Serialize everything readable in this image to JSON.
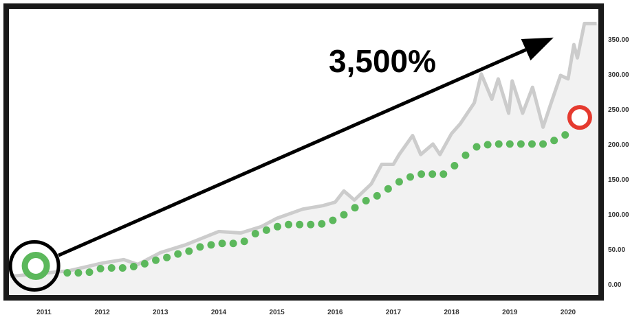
{
  "chart_data": {
    "type": "line",
    "title": "",
    "xlabel": "",
    "ylabel": "",
    "x_ticks": [
      "2011",
      "2012",
      "2013",
      "2014",
      "2015",
      "2016",
      "2017",
      "2018",
      "2019",
      "2020"
    ],
    "y_ticks": [
      "0.00",
      "50.00",
      "100.00",
      "150.00",
      "200.00",
      "250.00",
      "300.00",
      "350.00"
    ],
    "xlim": [
      2010.41,
      2020.52
    ],
    "ylim": [
      -15.7,
      390
    ],
    "y_axis_position": "right",
    "grid": false,
    "colors": {
      "price_line": "#cccccc",
      "area_fill": "#f2f2f2",
      "dots": "#5cb85c",
      "start_marker": "#5cb85c",
      "end_marker": "#e53a2f",
      "arrow": "#000000",
      "frame": "#1a1a1a"
    },
    "series": [
      {
        "style": "solid-gray-area",
        "x": [
          2010.42,
          2011.43,
          2012.0,
          2012.37,
          2012.61,
          2013.0,
          2013.43,
          2014.0,
          2014.38,
          2014.73,
          2015.0,
          2015.44,
          2015.79,
          2016.0,
          2016.15,
          2016.33,
          2016.62,
          2016.8,
          2017.0,
          2017.1,
          2017.33,
          2017.47,
          2017.68,
          2017.8,
          2018.0,
          2018.15,
          2018.39,
          2018.51,
          2018.69,
          2018.8,
          2018.98,
          2019.04,
          2019.22,
          2019.39,
          2019.57,
          2019.69,
          2019.87,
          2020.0,
          2020.1,
          2020.16,
          2020.28,
          2020.49
        ],
        "values": [
          11,
          19,
          30,
          35,
          28,
          45,
          56,
          75,
          73,
          82,
          94,
          107,
          112,
          117,
          133,
          120,
          143,
          171,
          171,
          185,
          212,
          185,
          200,
          185,
          215,
          229,
          259,
          300,
          264,
          293,
          244,
          290,
          244,
          281,
          224,
          254,
          298,
          293,
          342,
          323,
          372,
          372
        ]
      },
      {
        "style": "green-dotted",
        "x": [
          2011.4,
          2011.59,
          2011.78,
          2011.97,
          2012.16,
          2012.35,
          2012.54,
          2012.73,
          2012.92,
          2013.11,
          2013.3,
          2013.49,
          2013.68,
          2013.87,
          2014.06,
          2014.25,
          2014.44,
          2014.63,
          2014.82,
          2015.01,
          2015.2,
          2015.39,
          2015.58,
          2015.77,
          2015.96,
          2016.15,
          2016.34,
          2016.53,
          2016.72,
          2016.91,
          2017.1,
          2017.29,
          2017.48,
          2017.67,
          2017.86,
          2018.05,
          2018.24,
          2018.43,
          2018.62,
          2018.81,
          2019.0,
          2019.19,
          2019.38,
          2019.57,
          2019.76,
          2019.95
        ],
        "values": [
          16,
          16,
          17,
          22,
          23,
          23,
          25,
          29,
          34,
          38,
          43,
          47,
          53,
          56,
          58,
          58,
          61,
          72,
          77,
          82,
          85,
          85,
          85,
          86,
          91,
          99,
          109,
          119,
          126,
          136,
          146,
          153,
          157,
          157,
          157,
          169,
          184,
          196,
          199,
          200,
          200,
          200,
          200,
          200,
          205,
          213
        ]
      }
    ],
    "annotations": {
      "label": "3,500%",
      "start_marker": {
        "x": 2010.86,
        "y": 26
      },
      "end_marker": {
        "x": 2020.2,
        "y": 238
      },
      "arrow": {
        "from": [
          2011.25,
          41
        ],
        "to": [
          2019.75,
          352
        ]
      }
    }
  }
}
